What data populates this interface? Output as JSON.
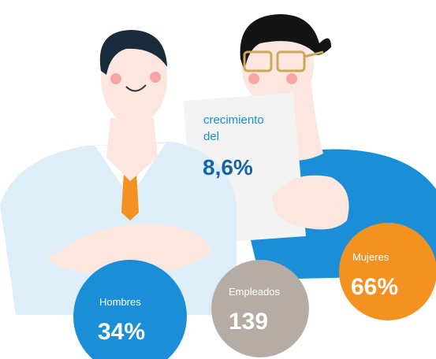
{
  "growth": {
    "line1": "crecimiento",
    "line2": "del",
    "value": "8,6%"
  },
  "stats": [
    {
      "label": "Hombres",
      "value": "34%"
    },
    {
      "label": "Empleados",
      "value": "139"
    },
    {
      "label": "Mujeres",
      "value": "66%"
    }
  ]
}
